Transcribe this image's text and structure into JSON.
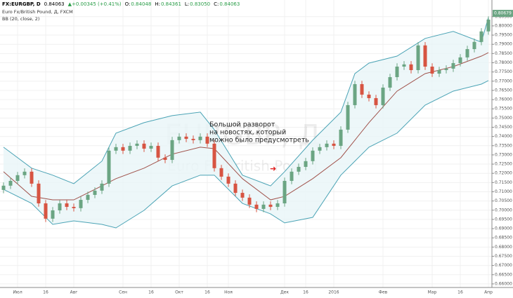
{
  "chart_data": {
    "type": "candlestick",
    "header": {
      "symbol": "FX:EURGBP, D",
      "price": "0.84063",
      "change": "▲+0.00345 (+0.41%)",
      "o_label": "O:",
      "o": "0.84048",
      "h_label": "H:",
      "h": "0.84361",
      "l_label": "L:",
      "l": "0.83050",
      "c_label": "C:",
      "c": "0.84063"
    },
    "subtitle": "Euro Fx/British Pound, Д, FXCM",
    "indicator": "BB (20, close, 2)",
    "watermark": [
      "EURGBP, Д",
      "Euro Fx/British Pound"
    ],
    "annotation": [
      "Большой разворот",
      "на новостях, который",
      "можно было предусмотреть"
    ],
    "annotation_arrow": "➜",
    "categories": [
      null,
      null,
      "Июл",
      null,
      null,
      null,
      "16",
      null,
      null,
      null,
      "Авг",
      null,
      null,
      null,
      null,
      null,
      null,
      "Сен",
      null,
      null,
      null,
      "16",
      null,
      null,
      null,
      "Окт",
      null,
      null,
      null,
      "16",
      null,
      null,
      "Ноя",
      null,
      null,
      null,
      null,
      null,
      null,
      null,
      "Дек",
      null,
      null,
      "16",
      null,
      null,
      null,
      "2016",
      null,
      null,
      null,
      null,
      null,
      null,
      "Фев",
      null,
      null,
      null,
      null,
      null,
      null,
      "Мар",
      null,
      null,
      null,
      "16",
      null,
      null,
      null,
      "Апр"
    ],
    "open": [
      0.711,
      0.7133,
      0.7159,
      0.719,
      0.7209,
      0.7144,
      0.7037,
      0.6954,
      0.6999,
      0.7037,
      0.7018,
      0.7011,
      0.7056,
      0.7083,
      0.7106,
      0.7144,
      0.7323,
      0.7342,
      0.7323,
      0.7349,
      0.7361,
      0.7334,
      0.7349,
      0.7285,
      0.7273,
      0.738,
      0.7399,
      0.7387,
      0.738,
      0.7399,
      0.7361,
      0.7228,
      0.7182,
      0.7144,
      0.7094,
      0.7068,
      0.703,
      0.7007,
      0.703,
      0.7018,
      0.7037,
      0.7159,
      0.7209,
      0.7235,
      0.7266,
      0.7323,
      0.7342,
      0.7361,
      0.7349,
      0.7437,
      0.757,
      0.7684,
      0.7627,
      0.7608,
      0.757,
      0.7665,
      0.7722,
      0.7779,
      0.7791,
      0.776,
      0.7894,
      0.7779,
      0.7741,
      0.776,
      0.7768,
      0.7798,
      0.7829,
      0.7874,
      0.7913,
      0.797
    ],
    "high": [
      0.7151,
      0.7177,
      0.7208,
      0.7227,
      0.7227,
      0.7162,
      0.7055,
      0.7017,
      0.7055,
      0.7055,
      0.7036,
      0.7074,
      0.7101,
      0.7124,
      0.7162,
      0.7341,
      0.736,
      0.736,
      0.7367,
      0.7379,
      0.7379,
      0.7367,
      0.7367,
      0.7303,
      0.7398,
      0.7417,
      0.7417,
      0.7405,
      0.7417,
      0.7417,
      0.7379,
      0.7246,
      0.72,
      0.7162,
      0.7112,
      0.7086,
      0.7048,
      0.7048,
      0.7048,
      0.7055,
      0.7177,
      0.7227,
      0.7253,
      0.7284,
      0.7341,
      0.736,
      0.7379,
      0.7379,
      0.7455,
      0.7588,
      0.7702,
      0.7702,
      0.7645,
      0.7626,
      0.7683,
      0.774,
      0.7797,
      0.7809,
      0.7809,
      0.7912,
      0.7912,
      0.7797,
      0.7778,
      0.7786,
      0.7816,
      0.7847,
      0.7892,
      0.7931,
      0.7988,
      0.8052
    ],
    "low": [
      0.7092,
      0.7115,
      0.7141,
      0.7172,
      0.7126,
      0.7019,
      0.6936,
      0.6936,
      0.6981,
      0.7,
      0.6993,
      0.6993,
      0.7038,
      0.7065,
      0.7088,
      0.7126,
      0.7305,
      0.7305,
      0.7305,
      0.7331,
      0.7316,
      0.7316,
      0.7267,
      0.7255,
      0.7255,
      0.7362,
      0.7369,
      0.7362,
      0.7362,
      0.7343,
      0.721,
      0.7164,
      0.7126,
      0.7076,
      0.705,
      0.7012,
      0.6989,
      0.6989,
      0.7,
      0.7,
      0.7019,
      0.7141,
      0.7191,
      0.7217,
      0.7248,
      0.7305,
      0.7324,
      0.7331,
      0.7331,
      0.7419,
      0.7552,
      0.7609,
      0.759,
      0.7552,
      0.7552,
      0.7647,
      0.7704,
      0.7761,
      0.7742,
      0.7742,
      0.7761,
      0.7723,
      0.7723,
      0.7742,
      0.775,
      0.778,
      0.7811,
      0.7856,
      0.7895,
      0.7952
    ],
    "close": [
      0.7133,
      0.7159,
      0.719,
      0.7209,
      0.7144,
      0.7037,
      0.6954,
      0.6999,
      0.7037,
      0.7018,
      0.7011,
      0.7056,
      0.7083,
      0.7106,
      0.7144,
      0.7323,
      0.7342,
      0.7323,
      0.7349,
      0.7361,
      0.7334,
      0.7349,
      0.7285,
      0.7273,
      0.738,
      0.7399,
      0.7387,
      0.738,
      0.7399,
      0.7361,
      0.7228,
      0.7182,
      0.7144,
      0.7094,
      0.7068,
      0.703,
      0.7007,
      0.703,
      0.7018,
      0.7037,
      0.7159,
      0.7209,
      0.7235,
      0.7266,
      0.7323,
      0.7342,
      0.7361,
      0.7349,
      0.7437,
      0.757,
      0.7684,
      0.7627,
      0.7608,
      0.757,
      0.7665,
      0.7722,
      0.7779,
      0.7791,
      0.776,
      0.7894,
      0.7779,
      0.7741,
      0.776,
      0.7768,
      0.7798,
      0.7829,
      0.7874,
      0.7913,
      0.797,
      0.8034
    ],
    "up_color": "#6ba583",
    "down_color": "#d75442",
    "bands": {
      "x": [
        0,
        4,
        7,
        10,
        14,
        16,
        20,
        24,
        28,
        30,
        34,
        38,
        40,
        44,
        48,
        50,
        52,
        56,
        60,
        64,
        68,
        69
      ],
      "upper": [
        0.7342,
        0.7228,
        0.719,
        0.7144,
        0.7266,
        0.7418,
        0.7475,
        0.7513,
        0.7532,
        0.7437,
        0.719,
        0.7132,
        0.7209,
        0.738,
        0.7532,
        0.7741,
        0.7798,
        0.7836,
        0.7932,
        0.797,
        0.7912,
        0.8046
      ],
      "middle": [
        0.7209,
        0.7075,
        0.7056,
        0.7056,
        0.7132,
        0.7171,
        0.7228,
        0.7304,
        0.7342,
        0.7334,
        0.7171,
        0.7056,
        0.7075,
        0.7171,
        0.7285,
        0.738,
        0.7475,
        0.7646,
        0.7741,
        0.7779,
        0.7836,
        0.7855
      ],
      "lower": [
        0.7113,
        0.7037,
        0.6923,
        0.6942,
        0.6923,
        0.6904,
        0.6999,
        0.7132,
        0.719,
        0.719,
        0.7037,
        0.698,
        0.6931,
        0.6961,
        0.719,
        0.7266,
        0.7342,
        0.7418,
        0.757,
        0.7646,
        0.7684,
        0.7703
      ],
      "band_color": "#4aa3b5",
      "middle_color": "#a0524b",
      "fill": "#e8f5f7"
    },
    "last_price": 0.80679,
    "ylim": [
      0.6573,
      0.811
    ],
    "yticks": [
      {
        "value": 0.66,
        "label": "0.66000"
      },
      {
        "value": 0.665,
        "label": "0.66500"
      },
      {
        "value": 0.67,
        "label": "0.67000"
      },
      {
        "value": 0.675,
        "label": "0.67500"
      },
      {
        "value": 0.68,
        "label": "0.68000"
      },
      {
        "value": 0.685,
        "label": "0.68500"
      },
      {
        "value": 0.69,
        "label": "0.69000"
      },
      {
        "value": 0.695,
        "label": "0.69500"
      },
      {
        "value": 0.7,
        "label": "0.70000"
      },
      {
        "value": 0.705,
        "label": "0.70500"
      },
      {
        "value": 0.71,
        "label": "0.71000"
      },
      {
        "value": 0.715,
        "label": "0.71500"
      },
      {
        "value": 0.72,
        "label": "0.72000"
      },
      {
        "value": 0.725,
        "label": "0.72500"
      },
      {
        "value": 0.73,
        "label": "0.73000"
      },
      {
        "value": 0.735,
        "label": "0.73500"
      },
      {
        "value": 0.74,
        "label": "0.74000"
      },
      {
        "value": 0.745,
        "label": "0.74500"
      },
      {
        "value": 0.75,
        "label": "0.75000"
      },
      {
        "value": 0.755,
        "label": "0.75500"
      },
      {
        "value": 0.76,
        "label": "0.76000"
      },
      {
        "value": 0.765,
        "label": "0.76500"
      },
      {
        "value": 0.77,
        "label": "0.77000"
      },
      {
        "value": 0.775,
        "label": "0.77500"
      },
      {
        "value": 0.78,
        "label": "0.78000"
      },
      {
        "value": 0.785,
        "label": "0.78500"
      },
      {
        "value": 0.79,
        "label": "0.79000"
      },
      {
        "value": 0.795,
        "label": "0.79500"
      },
      {
        "value": 0.8,
        "label": "0.80000"
      },
      {
        "value": 0.805,
        "label": "0.80500"
      }
    ],
    "grid": true
  }
}
